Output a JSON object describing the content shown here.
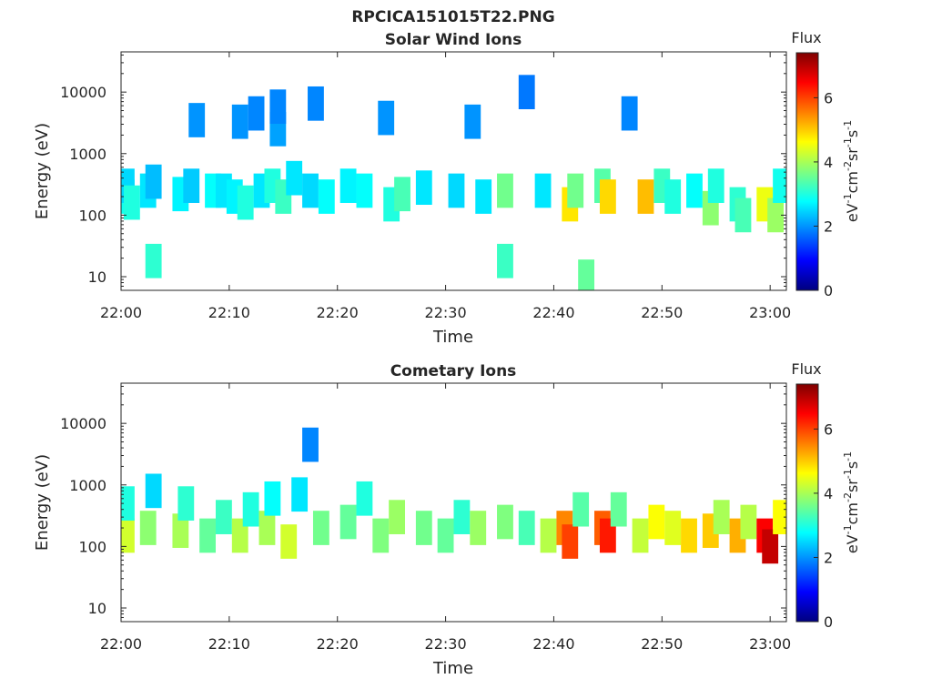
{
  "figure": {
    "title": "RPCICA151015T22.PNG"
  },
  "colormap": {
    "name": "jet",
    "stops": [
      "#00007f",
      "#0000ff",
      "#007fff",
      "#00ffff",
      "#7fff7f",
      "#ffff00",
      "#ff7f00",
      "#ff0000",
      "#7f0000"
    ]
  },
  "chart_data": [
    {
      "type": "heatmap",
      "title": "Solar Wind Ions",
      "xlabel": "Time",
      "ylabel": "Energy (eV)",
      "y_scale": "log",
      "xlim": [
        "22:00",
        "23:01:30"
      ],
      "ylim": [
        6,
        45000
      ],
      "x_ticks": [
        "22:00",
        "22:10",
        "22:20",
        "22:30",
        "22:40",
        "22:50",
        "23:00"
      ],
      "y_ticks": [
        "10",
        "100",
        "1000",
        "10000"
      ],
      "grid": false,
      "colorbar": {
        "title": "Flux",
        "label": "eV-1cm-2sr-1s-1",
        "range": [
          0,
          7.4
        ],
        "ticks": [
          "0",
          "2",
          "4",
          "6"
        ]
      },
      "cells": [
        [
          "22:00:30",
          200,
          2.9
        ],
        [
          "22:00:30",
          300,
          2.5
        ],
        [
          "22:01:00",
          160,
          3.0
        ],
        [
          "22:02:30",
          250,
          2.6
        ],
        [
          "22:03:00",
          350,
          2.3
        ],
        [
          "22:03:00",
          18,
          3.1
        ],
        [
          "22:05:30",
          220,
          2.7
        ],
        [
          "22:06:30",
          300,
          2.4
        ],
        [
          "22:07:00",
          3500,
          2.0
        ],
        [
          "22:08:30",
          250,
          2.8
        ],
        [
          "22:09:30",
          250,
          2.6
        ],
        [
          "22:10:30",
          200,
          2.7
        ],
        [
          "22:11:00",
          3300,
          2.0
        ],
        [
          "22:11:30",
          160,
          3.0
        ],
        [
          "22:12:30",
          4500,
          1.9
        ],
        [
          "22:13:00",
          250,
          2.6
        ],
        [
          "22:14:00",
          300,
          3.0
        ],
        [
          "22:14:30",
          2500,
          2.1
        ],
        [
          "22:14:30",
          5800,
          1.9
        ],
        [
          "22:15:00",
          200,
          3.2
        ],
        [
          "22:16:00",
          400,
          2.6
        ],
        [
          "22:17:30",
          250,
          2.5
        ],
        [
          "22:18:00",
          6500,
          1.9
        ],
        [
          "22:19:00",
          200,
          2.8
        ],
        [
          "22:21:00",
          300,
          2.7
        ],
        [
          "22:22:30",
          250,
          2.8
        ],
        [
          "22:24:30",
          3800,
          2.0
        ],
        [
          "22:25:00",
          150,
          3.0
        ],
        [
          "22:26:00",
          220,
          3.3
        ],
        [
          "22:28:00",
          280,
          2.6
        ],
        [
          "22:31:00",
          250,
          2.5
        ],
        [
          "22:32:30",
          3300,
          2.0
        ],
        [
          "22:33:30",
          200,
          2.6
        ],
        [
          "22:35:30",
          250,
          3.6
        ],
        [
          "22:35:30",
          18,
          3.2
        ],
        [
          "22:37:30",
          10000,
          1.8
        ],
        [
          "22:39:00",
          250,
          2.6
        ],
        [
          "22:41:30",
          150,
          4.8
        ],
        [
          "22:42:00",
          250,
          3.6
        ],
        [
          "22:43:00",
          10,
          3.5
        ],
        [
          "22:44:30",
          300,
          3.4
        ],
        [
          "22:45:00",
          200,
          4.9
        ],
        [
          "22:47:00",
          4500,
          1.9
        ],
        [
          "22:48:30",
          200,
          5.1
        ],
        [
          "22:50:00",
          300,
          3.2
        ],
        [
          "22:51:00",
          200,
          3.0
        ],
        [
          "22:53:00",
          250,
          2.8
        ],
        [
          "22:54:30",
          130,
          3.8
        ],
        [
          "22:55:00",
          300,
          3.0
        ],
        [
          "22:57:00",
          150,
          3.1
        ],
        [
          "22:57:30",
          100,
          3.3
        ],
        [
          "22:59:30",
          150,
          4.5
        ],
        [
          "23:00:30",
          100,
          3.9
        ],
        [
          "23:01:00",
          300,
          2.9
        ]
      ]
    },
    {
      "type": "heatmap",
      "title": "Cometary Ions",
      "xlabel": "Time",
      "ylabel": "Energy (eV)",
      "y_scale": "log",
      "xlim": [
        "22:00",
        "23:01:30"
      ],
      "ylim": [
        6,
        45000
      ],
      "x_ticks": [
        "22:00",
        "22:10",
        "22:20",
        "22:30",
        "22:40",
        "22:50",
        "23:00"
      ],
      "y_ticks": [
        "10",
        "100",
        "1000",
        "10000"
      ],
      "grid": false,
      "colorbar": {
        "title": "Flux",
        "label": "eV-1cm-2sr-1s-1",
        "range": [
          0,
          7.4
        ],
        "ticks": [
          "0",
          "2",
          "4",
          "6"
        ]
      },
      "cells": [
        [
          "22:00:30",
          150,
          4.3
        ],
        [
          "22:00:30",
          500,
          3.0
        ],
        [
          "22:02:30",
          200,
          3.8
        ],
        [
          "22:03:00",
          800,
          2.5
        ],
        [
          "22:05:30",
          180,
          4.0
        ],
        [
          "22:06:00",
          500,
          3.1
        ],
        [
          "22:08:00",
          150,
          3.5
        ],
        [
          "22:09:30",
          300,
          3.2
        ],
        [
          "22:11:00",
          150,
          4.1
        ],
        [
          "22:12:00",
          400,
          3.0
        ],
        [
          "22:13:30",
          200,
          4.0
        ],
        [
          "22:14:00",
          600,
          2.8
        ],
        [
          "22:15:30",
          120,
          4.3
        ],
        [
          "22:16:30",
          700,
          2.6
        ],
        [
          "22:17:30",
          4500,
          1.9
        ],
        [
          "22:18:30",
          200,
          3.6
        ],
        [
          "22:21:00",
          250,
          3.5
        ],
        [
          "22:22:30",
          600,
          3.0
        ],
        [
          "22:24:00",
          150,
          3.7
        ],
        [
          "22:25:30",
          300,
          3.9
        ],
        [
          "22:28:00",
          200,
          3.6
        ],
        [
          "22:30:00",
          150,
          3.5
        ],
        [
          "22:31:30",
          300,
          3.1
        ],
        [
          "22:33:00",
          200,
          3.9
        ],
        [
          "22:35:30",
          250,
          3.7
        ],
        [
          "22:37:30",
          200,
          3.3
        ],
        [
          "22:39:30",
          150,
          4.1
        ],
        [
          "22:41:00",
          200,
          5.5
        ],
        [
          "22:41:30",
          120,
          6.0
        ],
        [
          "22:42:30",
          400,
          3.4
        ],
        [
          "22:44:30",
          200,
          5.8
        ],
        [
          "22:45:00",
          150,
          6.3
        ],
        [
          "22:46:00",
          400,
          3.5
        ],
        [
          "22:48:00",
          150,
          4.2
        ],
        [
          "22:49:30",
          250,
          4.6
        ],
        [
          "22:51:00",
          200,
          4.4
        ],
        [
          "22:52:30",
          150,
          4.9
        ],
        [
          "22:54:30",
          180,
          5.0
        ],
        [
          "22:55:30",
          300,
          4.0
        ],
        [
          "22:57:00",
          150,
          5.2
        ],
        [
          "22:58:00",
          250,
          4.1
        ],
        [
          "22:59:30",
          150,
          6.5
        ],
        [
          "23:00:00",
          100,
          6.9
        ],
        [
          "23:01:00",
          300,
          4.6
        ]
      ]
    }
  ]
}
